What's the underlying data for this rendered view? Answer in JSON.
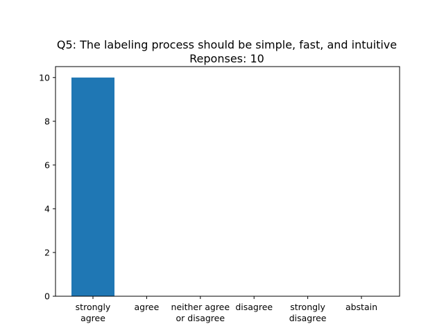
{
  "chart_data": {
    "type": "bar",
    "title": "Q5: The labeling process should be simple, fast, and intuitive",
    "subtitle": "Reponses: 10",
    "categories": [
      [
        "strongly",
        "agree"
      ],
      [
        "agree"
      ],
      [
        "neither agree",
        "or disagree"
      ],
      [
        "disagree"
      ],
      [
        "strongly",
        "disagree"
      ],
      [
        "abstain"
      ]
    ],
    "values": [
      10,
      0,
      0,
      0,
      0,
      0
    ],
    "xlabel": "",
    "ylabel": "",
    "ylim": [
      0,
      10.5
    ],
    "yticks": [
      "0",
      "2",
      "4",
      "6",
      "8",
      "10"
    ],
    "bar_color": "#1f77b4",
    "grid": false,
    "legend": "none"
  }
}
